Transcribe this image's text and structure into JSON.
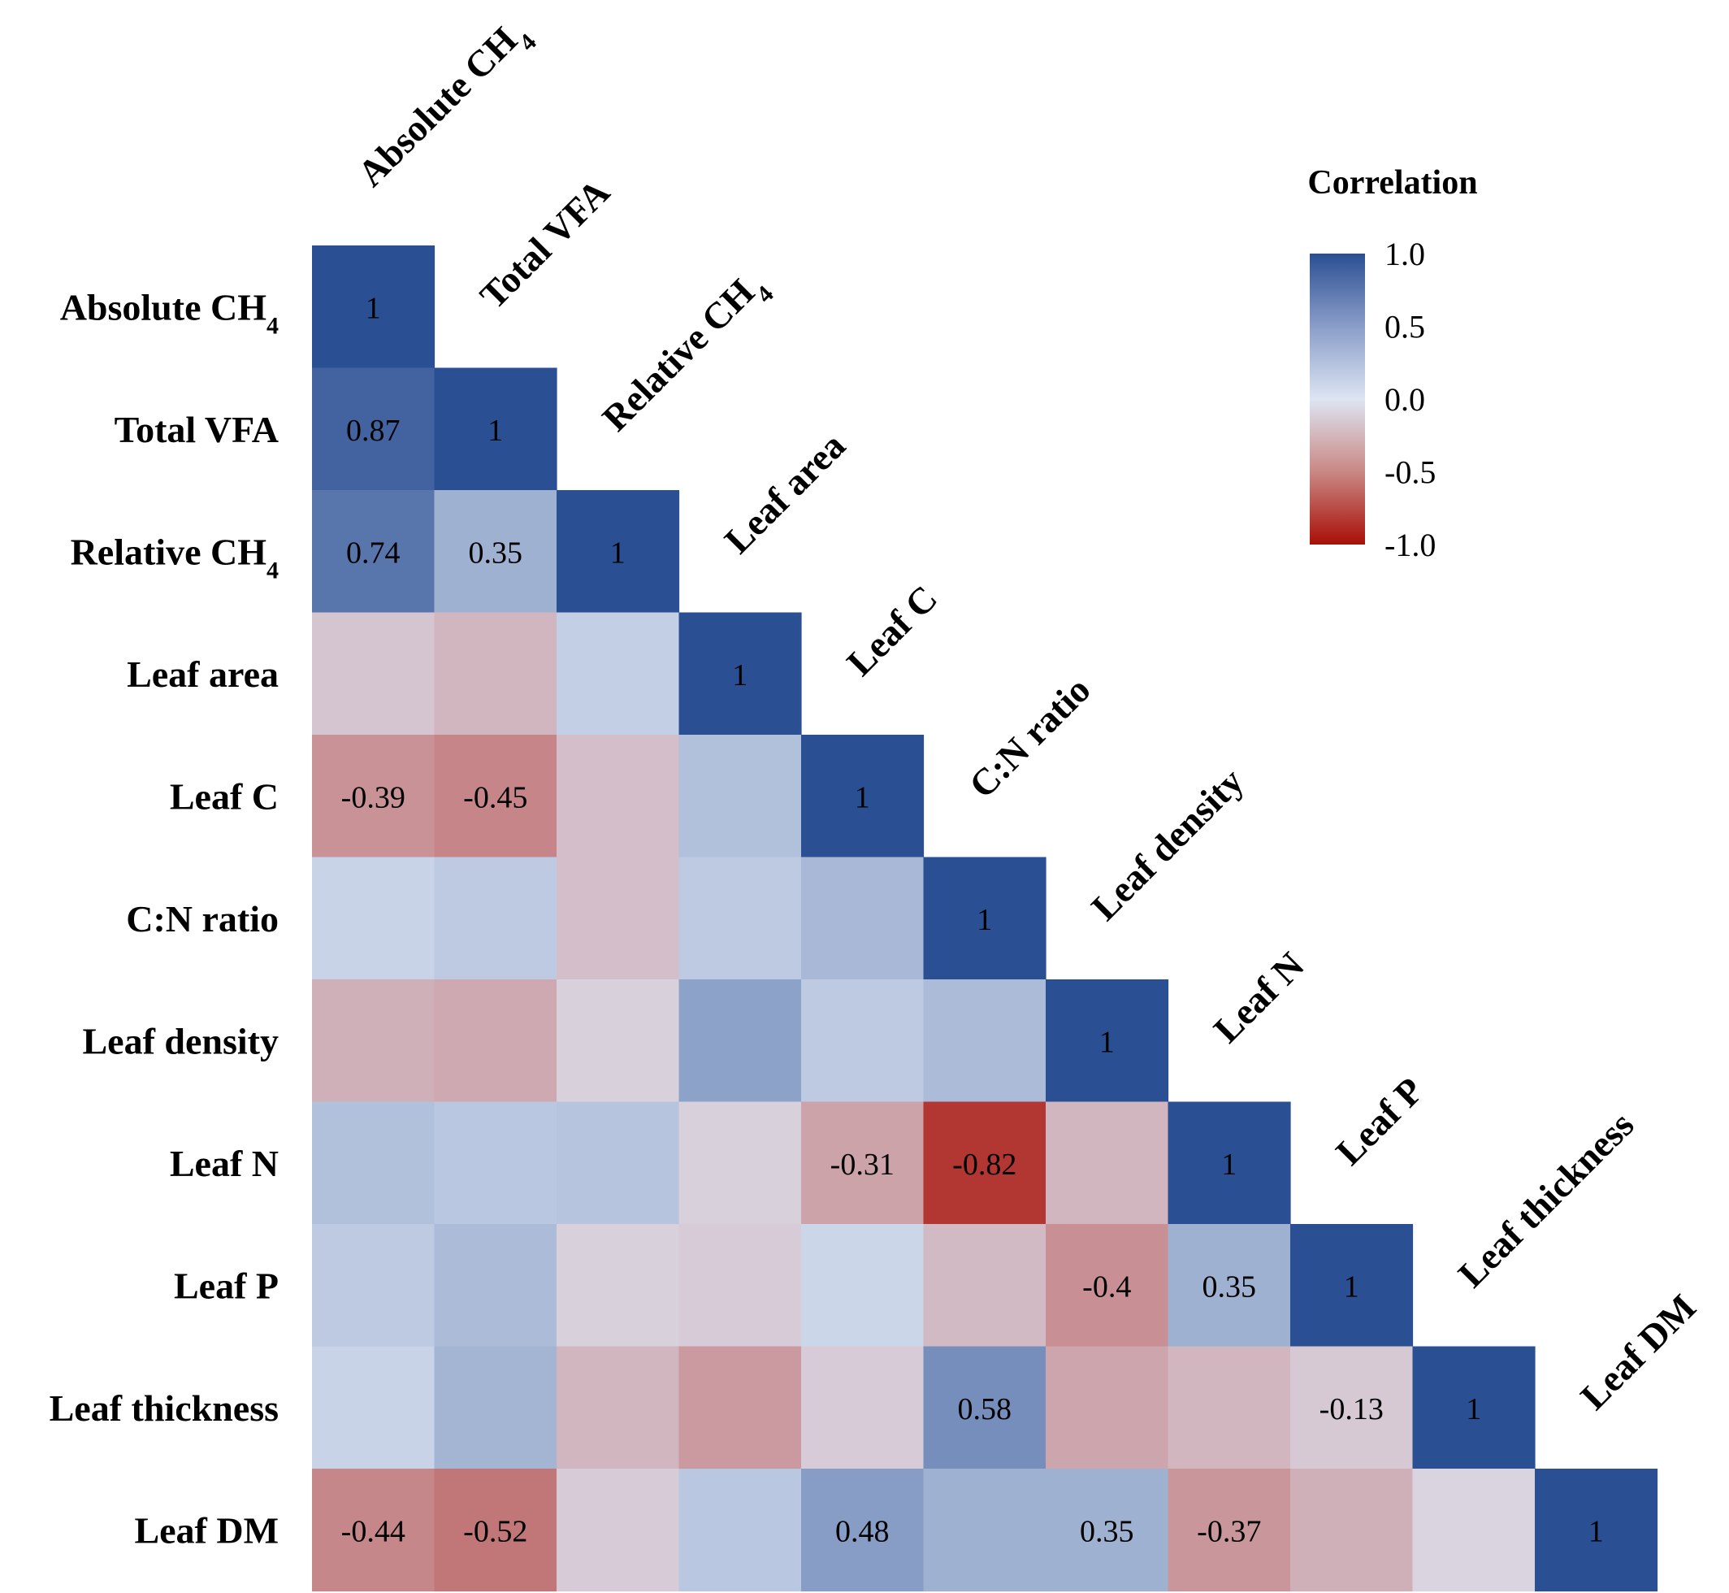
{
  "chart_data": {
    "type": "heatmap",
    "variables": [
      {
        "name": "Absolute CH",
        "sub": "4"
      },
      {
        "name": "Total VFA",
        "sub": ""
      },
      {
        "name": "Relative CH",
        "sub": "4"
      },
      {
        "name": "Leaf area",
        "sub": ""
      },
      {
        "name": "Leaf C",
        "sub": ""
      },
      {
        "name": "C:N ratio",
        "sub": ""
      },
      {
        "name": "Leaf density",
        "sub": ""
      },
      {
        "name": "Leaf N",
        "sub": ""
      },
      {
        "name": "Leaf P",
        "sub": ""
      },
      {
        "name": "Leaf thickness",
        "sub": ""
      },
      {
        "name": "Leaf DM",
        "sub": ""
      }
    ],
    "matrix": [
      [
        1.0
      ],
      [
        0.87,
        1.0
      ],
      [
        0.74,
        0.35,
        1.0
      ],
      [
        -0.15,
        -0.22,
        0.15,
        1.0
      ],
      [
        -0.39,
        -0.45,
        -0.18,
        0.25,
        1.0
      ],
      [
        0.12,
        0.18,
        -0.18,
        0.18,
        0.3,
        1.0
      ],
      [
        -0.25,
        -0.28,
        -0.1,
        0.45,
        0.18,
        0.28,
        1.0
      ],
      [
        0.25,
        0.2,
        0.22,
        -0.1,
        -0.31,
        -0.82,
        -0.22,
        1.0
      ],
      [
        0.18,
        0.28,
        -0.1,
        -0.12,
        0.1,
        -0.2,
        -0.4,
        0.35,
        1.0
      ],
      [
        0.12,
        0.32,
        -0.22,
        -0.35,
        -0.12,
        0.58,
        -0.3,
        -0.22,
        -0.13,
        1.0
      ],
      [
        -0.44,
        -0.52,
        -0.12,
        0.2,
        0.48,
        0.35,
        0.35,
        -0.37,
        -0.25,
        -0.08,
        1.0
      ]
    ],
    "labels": [
      [
        "1"
      ],
      [
        "0.87",
        "1"
      ],
      [
        "0.74",
        "0.35",
        "1"
      ],
      [
        "",
        "",
        "",
        "1"
      ],
      [
        "-0.39",
        "-0.45",
        "",
        "",
        "1"
      ],
      [
        "",
        "",
        "",
        "",
        "",
        "1"
      ],
      [
        "",
        "",
        "",
        "",
        "",
        "",
        "1"
      ],
      [
        "",
        "",
        "",
        "",
        "-0.31",
        "-0.82",
        "",
        "1"
      ],
      [
        "",
        "",
        "",
        "",
        "",
        "",
        "-0.4",
        "0.35",
        "1"
      ],
      [
        "",
        "",
        "",
        "",
        "",
        "0.58",
        "",
        "",
        "-0.13",
        "1"
      ],
      [
        "-0.44",
        "-0.52",
        "",
        "",
        "0.48",
        "",
        "0.35",
        "-0.37",
        "",
        "",
        "1"
      ]
    ],
    "legend": {
      "title": "Correlation",
      "ticks": [
        "1.0",
        "0.5",
        "0.0",
        "-0.5",
        "-1.0"
      ],
      "range": [
        -1,
        1
      ],
      "colors": {
        "high": "#2b4f93",
        "mid": "#dde5f3",
        "low": "#a80f07"
      }
    }
  }
}
